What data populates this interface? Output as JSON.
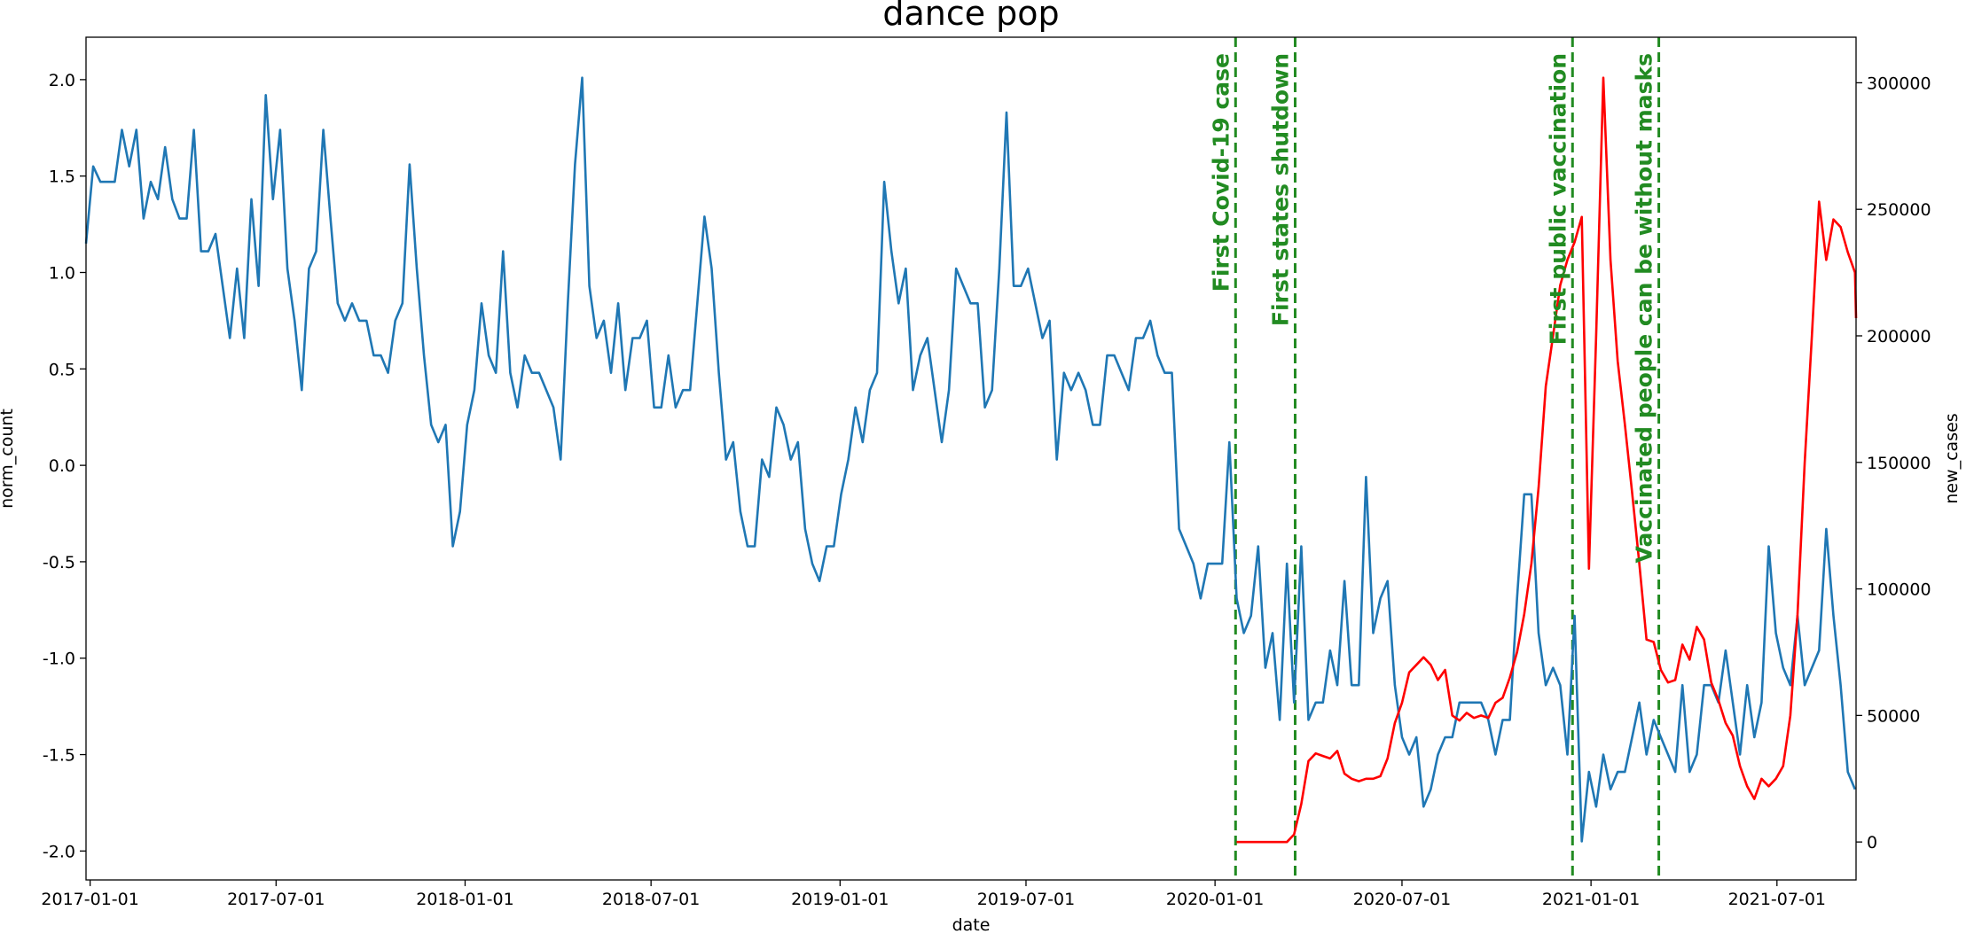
{
  "chart_data": {
    "type": "line",
    "title": "dance pop",
    "xlabel": "date",
    "ylabel_left": "norm_count",
    "ylabel_right": "new_cases",
    "x_range": [
      "2016-12-28",
      "2021-09-16"
    ],
    "ylim_left": [
      -2.15,
      2.22
    ],
    "ylim_right": [
      -15000,
      318000
    ],
    "x_ticks": [
      "2017-01-01",
      "2017-07-01",
      "2018-01-01",
      "2018-07-01",
      "2019-01-01",
      "2019-07-01",
      "2020-01-01",
      "2020-07-01",
      "2021-01-01",
      "2021-07-01"
    ],
    "y_ticks_left": [
      "2.0",
      "1.5",
      "1.0",
      "0.5",
      "0.0",
      "-0.5",
      "-1.0",
      "-1.5",
      "-2.0"
    ],
    "y_ticks_right": [
      "300000",
      "250000",
      "200000",
      "150000",
      "100000",
      "50000",
      "0"
    ],
    "grid": false,
    "colors": {
      "norm_count": "#1f77b4",
      "new_cases": "#ff0000",
      "events": "#228b22"
    },
    "events": [
      {
        "date": "2020-01-21",
        "label": "First Covid-19 case"
      },
      {
        "date": "2020-03-19",
        "label": "First states shutdown"
      },
      {
        "date": "2020-12-14",
        "label": "First public vaccination"
      },
      {
        "date": "2021-03-08",
        "label": "Vaccinated people can be without masks"
      }
    ],
    "series": [
      {
        "axis": "left",
        "start": "2016-12-28",
        "step_days": 7,
        "values": [
          1.15,
          1.55,
          1.47,
          1.47,
          1.47,
          1.74,
          1.55,
          1.74,
          1.28,
          1.47,
          1.38,
          1.65,
          1.38,
          1.28,
          1.28,
          1.74,
          1.11,
          1.11,
          1.2,
          0.93,
          0.66,
          1.02,
          0.66,
          1.38,
          0.93,
          1.92,
          1.38,
          1.74,
          1.02,
          0.75,
          0.39,
          1.02,
          1.11,
          1.74,
          1.28,
          0.84,
          0.75,
          0.84,
          0.75,
          0.75,
          0.57,
          0.57,
          0.48,
          0.75,
          0.84,
          1.56,
          1.02,
          0.57,
          0.21,
          0.12,
          0.21,
          -0.42,
          -0.24,
          0.21,
          0.39,
          0.84,
          0.57,
          0.48,
          1.11,
          0.48,
          0.3,
          0.57,
          0.48,
          0.48,
          0.39,
          0.3,
          0.03,
          0.84,
          1.56,
          2.01,
          0.93,
          0.66,
          0.75,
          0.48,
          0.84,
          0.39,
          0.66,
          0.66,
          0.75,
          0.3,
          0.3,
          0.57,
          0.3,
          0.39,
          0.39,
          0.84,
          1.29,
          1.02,
          0.48,
          0.03,
          0.12,
          -0.24,
          -0.42,
          -0.42,
          0.03,
          -0.06,
          0.3,
          0.21,
          0.03,
          0.12,
          -0.33,
          -0.51,
          -0.6,
          -0.42,
          -0.42,
          -0.15,
          0.03,
          0.3,
          0.12,
          0.39,
          0.48,
          1.47,
          1.11,
          0.84,
          1.02,
          0.39,
          0.57,
          0.66,
          0.39,
          0.12,
          0.39,
          1.02,
          0.93,
          0.84,
          0.84,
          0.3,
          0.39,
          1.02,
          1.83,
          0.93,
          0.93,
          1.02,
          0.84,
          0.66,
          0.75,
          0.03,
          0.48,
          0.39,
          0.48,
          0.39,
          0.21,
          0.21,
          0.57,
          0.57,
          0.48,
          0.39,
          0.66,
          0.66,
          0.75,
          0.57,
          0.48,
          0.48,
          -0.33,
          -0.42,
          -0.51,
          -0.69,
          -0.51,
          -0.51,
          -0.51,
          0.12,
          -0.69,
          -0.87,
          -0.78,
          -0.42,
          -1.05,
          -0.87,
          -1.32,
          -0.51,
          -1.23,
          -0.42,
          -1.32,
          -1.23,
          -1.23,
          -0.96,
          -1.14,
          -0.6,
          -1.14,
          -1.14,
          -0.06,
          -0.87,
          -0.69,
          -0.6,
          -1.14,
          -1.41,
          -1.5,
          -1.41,
          -1.77,
          -1.68,
          -1.5,
          -1.41,
          -1.41,
          -1.23,
          -1.23,
          -1.23,
          -1.23,
          -1.32,
          -1.5,
          -1.32,
          -1.32,
          -0.69,
          -0.15,
          -0.15,
          -0.87,
          -1.14,
          -1.05,
          -1.14,
          -1.5,
          -0.78,
          -1.95,
          -1.59,
          -1.77,
          -1.5,
          -1.68,
          -1.59,
          -1.59,
          -1.41,
          -1.23,
          -1.5,
          -1.32,
          -1.41,
          -1.5,
          -1.59,
          -1.14,
          -1.59,
          -1.5,
          -1.14,
          -1.14,
          -1.23,
          -0.96,
          -1.23,
          -1.5,
          -1.14,
          -1.41,
          -1.23,
          -0.42,
          -0.87,
          -1.05,
          -1.14,
          -0.78,
          -1.14,
          -1.05,
          -0.96,
          -0.33,
          -0.78,
          -1.14,
          -1.59,
          -1.68
        ]
      },
      {
        "axis": "right",
        "start": "2020-01-22",
        "step_days": 7,
        "values": [
          0,
          0,
          0,
          0,
          0,
          0,
          0,
          0,
          3000,
          15000,
          32000,
          35000,
          34000,
          33000,
          36000,
          27000,
          25000,
          24000,
          25000,
          25000,
          26000,
          33000,
          47000,
          55000,
          67000,
          70000,
          73000,
          70000,
          64000,
          68000,
          50000,
          48000,
          51000,
          49000,
          50000,
          49000,
          55000,
          57000,
          65000,
          75000,
          90000,
          110000,
          140000,
          180000,
          200000,
          220000,
          230000,
          237000,
          247000,
          108000,
          200000,
          302000,
          230000,
          190000,
          165000,
          138000,
          110000,
          80000,
          79000,
          68000,
          63000,
          64000,
          78000,
          72000,
          85000,
          80000,
          63000,
          56000,
          47000,
          42000,
          30000,
          22000,
          17000,
          25000,
          22000,
          25000,
          30000,
          50000,
          90000,
          150000,
          200000,
          253000,
          230000,
          246000,
          243000,
          233000,
          225000,
          207000
        ]
      }
    ]
  }
}
